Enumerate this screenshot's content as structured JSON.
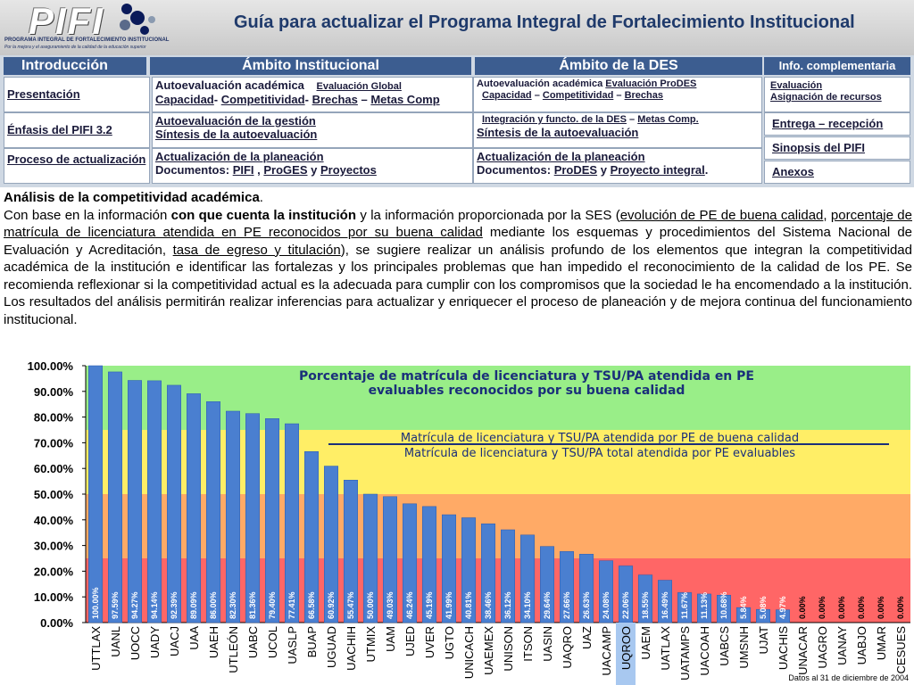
{
  "header": {
    "logo_text": "PIFI",
    "logo_caption": "PROGRAMA INTEGRAL DE FORTALECIMIENTO INSTITUCIONAL",
    "logo_tagline": "Por la mejora y el aseguramiento de la calidad de la educación superior",
    "title": "Guía para actualizar el Programa Integral de Fortalecimiento Institucional"
  },
  "tabs": {
    "intro": "Introducción",
    "institucional": "Ámbito Institucional",
    "des": "Ámbito de la DES",
    "info": "Info. complementaria"
  },
  "intro_items": [
    "Presentación",
    "Énfasis del PIFI 3.2",
    "Proceso de actualización"
  ],
  "inst": {
    "autoeval": "Autoevaluación académica",
    "eval_global": "Evaluación Global",
    "capacidad": "Capacidad",
    "competitividad": "Competitividad",
    "brechas": "Brechas",
    "metas": "Metas Comp",
    "gestion": "Autoevaluación de la gestión",
    "sintesis": "Síntesis de la autoevaluación",
    "actualizacion": "Actualización de la planeación",
    "documentos": "Documentos:",
    "pifi": "PIFI",
    "proges": "ProGES",
    "proyectos": "Proyectos",
    "y": "y"
  },
  "des": {
    "autoeval": "Autoevaluación académica",
    "eval_prodes": "Evaluación ProDES",
    "capacidad": "Capacidad",
    "competitividad": "Competitividad",
    "brechas": "Brechas",
    "integracion": "Integración y functo. de la DES",
    "metas": "Metas Comp.",
    "sintesis": "Síntesis de la autoevaluación",
    "actualizacion": "Actualización de la planeación",
    "documentos": "Documentos:",
    "prodes": "ProDES",
    "proyecto": "Proyecto integral",
    "y": "y"
  },
  "info": {
    "evaluacion": "Evaluación",
    "asignacion": "Asignación de recursos",
    "entrega": "Entrega – recepción",
    "sinopsis": "Sinopsis del PIFI",
    "anexos": "Anexos"
  },
  "text": {
    "heading": "Análisis de la competitividad académica",
    "p1": "Con base en la información ",
    "b1": "con que cuenta la institución",
    "p2": " y la información proporcionada por la SES (",
    "u1": "evolución de PE de buena calidad",
    "p3": ", ",
    "u2": "porcentaje de matrícula de licenciatura atendida en PE reconocidos por su buena calidad",
    "p4": " mediante los esquemas y procedimientos del Sistema Nacional de Evaluación y Acreditación, ",
    "u3": "tasa de egreso y titulación",
    "p5": "), se sugiere realizar un análisis profundo de los elementos que integran la competitividad académica de la institución e identificar las fortalezas y los principales problemas que han impedido el reconocimiento de la calidad de los PE. Se recomienda reflexionar si la competitividad actual es la adecuada para cumplir con los compromisos que la sociedad le ha encomendado a la institución. Los resultados del análisis permitirán realizar inferencias para actualizar y enriquecer el proceso de planeación y de mejora continua del funcionamiento institucional."
  },
  "colors": {
    "band_green": "#99ee88",
    "band_yellow": "#ffee66",
    "band_orange": "#ffaa66",
    "band_red": "#ff6666",
    "bar": "#4a7fd0",
    "title_color": "#1a2f7a",
    "highlight": "#a8c8f0"
  },
  "chart_data": {
    "type": "bar",
    "title": "Porcentaje de matrícula de licenciatura y TSU/PA atendida en PE evaluables reconocidos por su buena calidad",
    "legend_line1": "Matrícula de licenciatura y TSU/PA atendida por PE de buena calidad",
    "legend_line2": "Matrícula de licenciatura y TSU/PA total atendida por PE evaluables",
    "footnote": "Datos al 31 de diciembre de 2004",
    "ylim": [
      0,
      100
    ],
    "yticks": [
      "0.00%",
      "10.00%",
      "20.00%",
      "30.00%",
      "40.00%",
      "50.00%",
      "60.00%",
      "70.00%",
      "80.00%",
      "90.00%",
      "100.00%"
    ],
    "bands": [
      [
        75,
        100
      ],
      [
        50,
        75
      ],
      [
        25,
        50
      ],
      [
        0,
        25
      ]
    ],
    "highlighted_category": "UQROO",
    "categories": [
      "UTTLAX",
      "UANL",
      "UOCC",
      "UADY",
      "UACJ",
      "UAA",
      "UAEH",
      "UTLEÓN",
      "UABC",
      "UCOL",
      "UASLP",
      "BUAP",
      "UGUAD",
      "UACHIH",
      "UTMIX",
      "UAM",
      "UJED",
      "UVER",
      "UGTO",
      "UNICACH",
      "UAEMEX",
      "UNISON",
      "ITSON",
      "UASIN",
      "UAQRO",
      "UAZ",
      "UACAMP",
      "UQROO",
      "UAEM",
      "UATLAX",
      "UATAMPS",
      "UACOAH",
      "UABCS",
      "UMSNH",
      "UJAT",
      "UACHIS",
      "UNACAR",
      "UAGRO",
      "UANAY",
      "UABJO",
      "UMAR",
      "CESUES"
    ],
    "values": [
      100.0,
      97.59,
      94.27,
      94.14,
      92.39,
      89.09,
      86.0,
      82.3,
      81.36,
      79.4,
      77.41,
      66.58,
      60.92,
      55.47,
      50.0,
      49.03,
      46.24,
      45.19,
      41.99,
      40.81,
      38.46,
      36.12,
      34.1,
      29.64,
      27.66,
      26.63,
      24.08,
      22.06,
      18.55,
      16.49,
      11.67,
      11.13,
      10.68,
      5.84,
      5.08,
      4.97,
      0.0,
      0.0,
      0.0,
      0.0,
      0.0,
      0.0
    ],
    "value_labels": [
      "100.00%",
      "97.59%",
      "94.27%",
      "94.14%",
      "92.39%",
      "89.09%",
      "86.00%",
      "82.30%",
      "81.36%",
      "79.40%",
      "77.41%",
      "66.58%",
      "60.92%",
      "55.47%",
      "50.00%",
      "49.03%",
      "46.24%",
      "45.19%",
      "41.99%",
      "40.81%",
      "38.46%",
      "36.12%",
      "34.10%",
      "29.64%",
      "27.66%",
      "26.63%",
      "24.08%",
      "22.06%",
      "18.55%",
      "16.49%",
      "11.67%",
      "11.13%",
      "10.68%",
      "5.84%",
      "5.08%",
      "4.97%",
      "0.00%",
      "0.00%",
      "0.00%",
      "0.00%",
      "0.00%",
      "0.00%"
    ]
  }
}
